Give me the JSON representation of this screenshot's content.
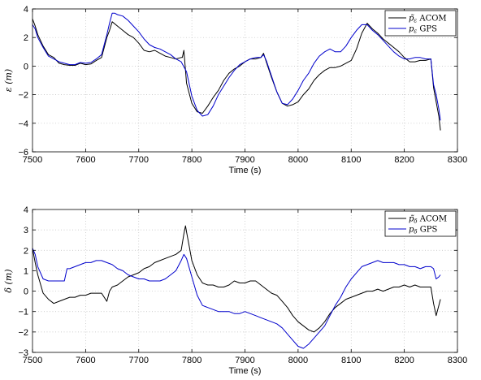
{
  "chart_data": [
    {
      "type": "line",
      "xlabel": "Time (s)",
      "ylabel": "ε (m)",
      "xlim": [
        7500,
        8300
      ],
      "ylim": [
        -6,
        4
      ],
      "xticks": [
        "7500",
        "7600",
        "7700",
        "7800",
        "7900",
        "8000",
        "8100",
        "8200",
        "8300"
      ],
      "yticks": [
        "−6",
        "−4",
        "−2",
        "0",
        "2",
        "4"
      ],
      "grid": true,
      "legend": "top-right",
      "series": [
        {
          "name": "p̃ε ACOM",
          "name_main": "p̃",
          "name_sub": "ε",
          "name_suffix": " ACOM",
          "color": "#000000",
          "x": [
            7500,
            7505,
            7510,
            7520,
            7530,
            7540,
            7550,
            7560,
            7570,
            7580,
            7590,
            7600,
            7610,
            7620,
            7630,
            7640,
            7645,
            7650,
            7660,
            7670,
            7680,
            7690,
            7700,
            7710,
            7720,
            7730,
            7740,
            7750,
            7760,
            7770,
            7780,
            7782,
            7785,
            7790,
            7800,
            7810,
            7820,
            7830,
            7840,
            7850,
            7860,
            7870,
            7880,
            7890,
            7900,
            7910,
            7920,
            7930,
            7935,
            7940,
            7950,
            7960,
            7970,
            7980,
            7990,
            8000,
            8010,
            8020,
            8030,
            8040,
            8050,
            8060,
            8070,
            8080,
            8090,
            8100,
            8110,
            8120,
            8130,
            8140,
            8150,
            8160,
            8170,
            8180,
            8190,
            8200,
            8210,
            8220,
            8230,
            8240,
            8250,
            8255,
            8260,
            8265,
            8268
          ],
          "values": [
            3.3,
            2.8,
            2.2,
            1.4,
            0.8,
            0.6,
            0.2,
            0.1,
            0.05,
            0.05,
            0.2,
            0.1,
            0.15,
            0.4,
            0.6,
            2.0,
            2.5,
            3.1,
            2.8,
            2.5,
            2.2,
            2.0,
            1.6,
            1.1,
            1.0,
            1.1,
            0.9,
            0.7,
            0.6,
            0.5,
            0.6,
            0.6,
            1.1,
            -1.2,
            -2.6,
            -3.2,
            -3.3,
            -2.8,
            -2.2,
            -1.7,
            -1.0,
            -0.5,
            -0.2,
            0.0,
            0.3,
            0.5,
            0.5,
            0.6,
            0.9,
            0.3,
            -0.8,
            -1.8,
            -2.6,
            -2.8,
            -2.7,
            -2.5,
            -2.0,
            -1.6,
            -1.0,
            -0.6,
            -0.3,
            -0.1,
            -0.1,
            0.0,
            0.2,
            0.4,
            1.2,
            2.3,
            3.0,
            2.6,
            2.3,
            1.9,
            1.6,
            1.3,
            1.0,
            0.6,
            0.3,
            0.3,
            0.4,
            0.4,
            0.5,
            -1.5,
            -2.5,
            -3.5,
            -4.5
          ]
        },
        {
          "name": "pε GPS",
          "name_main": "p",
          "name_sub": "ε",
          "name_suffix": " GPS",
          "color": "#0000cc",
          "x": [
            7500,
            7505,
            7510,
            7520,
            7530,
            7540,
            7550,
            7560,
            7570,
            7580,
            7590,
            7600,
            7610,
            7620,
            7630,
            7640,
            7645,
            7650,
            7655,
            7660,
            7670,
            7680,
            7690,
            7700,
            7710,
            7720,
            7730,
            7740,
            7750,
            7760,
            7770,
            7780,
            7790,
            7800,
            7810,
            7820,
            7830,
            7840,
            7850,
            7860,
            7870,
            7880,
            7890,
            7900,
            7910,
            7920,
            7930,
            7935,
            7940,
            7950,
            7960,
            7970,
            7980,
            7990,
            8000,
            8010,
            8020,
            8030,
            8040,
            8050,
            8060,
            8070,
            8080,
            8090,
            8100,
            8110,
            8120,
            8130,
            8140,
            8150,
            8160,
            8170,
            8180,
            8190,
            8200,
            8210,
            8220,
            8230,
            8240,
            8250,
            8255,
            8260,
            8265,
            8268
          ],
          "values": [
            2.9,
            2.6,
            2.0,
            1.3,
            0.7,
            0.5,
            0.3,
            0.2,
            0.1,
            0.1,
            0.25,
            0.2,
            0.25,
            0.5,
            0.8,
            2.2,
            3.0,
            3.7,
            3.7,
            3.6,
            3.5,
            3.2,
            2.8,
            2.4,
            1.9,
            1.5,
            1.3,
            1.2,
            1.0,
            0.8,
            0.5,
            0.3,
            -0.4,
            -2.1,
            -3.1,
            -3.5,
            -3.4,
            -2.8,
            -2.0,
            -1.4,
            -0.8,
            -0.3,
            0.1,
            0.3,
            0.5,
            0.6,
            0.6,
            0.8,
            0.4,
            -0.7,
            -1.8,
            -2.6,
            -2.7,
            -2.3,
            -1.7,
            -1.0,
            -0.5,
            0.2,
            0.7,
            1.0,
            1.2,
            1.0,
            1.0,
            1.4,
            2.0,
            2.5,
            2.9,
            2.9,
            2.5,
            2.2,
            1.8,
            1.4,
            1.0,
            0.7,
            0.5,
            0.5,
            0.6,
            0.6,
            0.5,
            0.5,
            -1.3,
            -2.0,
            -3.0,
            -3.8
          ]
        }
      ]
    },
    {
      "type": "line",
      "xlabel": "Time (s)",
      "ylabel": "δ (m)",
      "xlim": [
        7500,
        8300
      ],
      "ylim": [
        -3,
        4
      ],
      "xticks": [
        "7500",
        "7600",
        "7700",
        "7800",
        "7900",
        "8000",
        "8100",
        "8200",
        "8300"
      ],
      "yticks": [
        "−3",
        "−2",
        "−1",
        "0",
        "1",
        "2",
        "3",
        "4"
      ],
      "grid": true,
      "legend": "top-right",
      "series": [
        {
          "name": "p̃δ ACOM",
          "name_main": "p̃",
          "name_sub": "δ",
          "name_suffix": " ACOM",
          "color": "#000000",
          "x": [
            7500,
            7505,
            7510,
            7520,
            7530,
            7540,
            7550,
            7560,
            7570,
            7580,
            7590,
            7600,
            7610,
            7620,
            7630,
            7640,
            7645,
            7650,
            7660,
            7670,
            7680,
            7690,
            7700,
            7710,
            7720,
            7730,
            7740,
            7750,
            7760,
            7770,
            7780,
            7785,
            7788,
            7790,
            7795,
            7800,
            7810,
            7820,
            7830,
            7840,
            7850,
            7860,
            7870,
            7880,
            7890,
            7900,
            7910,
            7920,
            7930,
            7940,
            7950,
            7960,
            7970,
            7980,
            7990,
            8000,
            8010,
            8020,
            8030,
            8040,
            8050,
            8060,
            8070,
            8080,
            8090,
            8100,
            8110,
            8120,
            8130,
            8140,
            8150,
            8160,
            8170,
            8180,
            8190,
            8200,
            8210,
            8220,
            8230,
            8240,
            8250,
            8255,
            8260,
            8265,
            8268
          ],
          "values": [
            2.1,
            1.4,
            0.8,
            -0.1,
            -0.4,
            -0.6,
            -0.5,
            -0.4,
            -0.3,
            -0.3,
            -0.2,
            -0.2,
            -0.1,
            -0.1,
            -0.1,
            -0.5,
            0.0,
            0.2,
            0.3,
            0.5,
            0.7,
            0.8,
            0.9,
            1.1,
            1.2,
            1.4,
            1.5,
            1.6,
            1.7,
            1.8,
            2.0,
            2.8,
            3.2,
            2.9,
            2.2,
            1.5,
            0.8,
            0.4,
            0.3,
            0.3,
            0.2,
            0.2,
            0.3,
            0.5,
            0.4,
            0.4,
            0.5,
            0.5,
            0.3,
            0.1,
            -0.1,
            -0.2,
            -0.5,
            -0.8,
            -1.2,
            -1.5,
            -1.7,
            -1.9,
            -2.0,
            -1.8,
            -1.5,
            -1.1,
            -0.8,
            -0.6,
            -0.4,
            -0.3,
            -0.2,
            -0.1,
            0.0,
            0.0,
            0.1,
            0.0,
            0.1,
            0.2,
            0.2,
            0.3,
            0.2,
            0.3,
            0.2,
            0.2,
            0.2,
            -0.6,
            -1.2,
            -0.7,
            -0.4
          ]
        },
        {
          "name": "pδ GPS",
          "name_main": "p",
          "name_sub": "δ",
          "name_suffix": " GPS",
          "color": "#0000cc",
          "x": [
            7500,
            7505,
            7510,
            7520,
            7530,
            7540,
            7550,
            7560,
            7565,
            7570,
            7580,
            7590,
            7600,
            7610,
            7620,
            7630,
            7640,
            7650,
            7660,
            7670,
            7680,
            7690,
            7700,
            7710,
            7720,
            7730,
            7740,
            7750,
            7760,
            7770,
            7780,
            7785,
            7790,
            7800,
            7810,
            7820,
            7830,
            7840,
            7850,
            7860,
            7870,
            7880,
            7890,
            7900,
            7910,
            7920,
            7930,
            7940,
            7950,
            7960,
            7970,
            7980,
            7990,
            8000,
            8010,
            8020,
            8030,
            8040,
            8050,
            8060,
            8070,
            8080,
            8090,
            8100,
            8110,
            8120,
            8130,
            8140,
            8150,
            8160,
            8170,
            8180,
            8190,
            8200,
            8210,
            8220,
            8230,
            8240,
            8250,
            8255,
            8260,
            8265,
            8268
          ],
          "values": [
            2.1,
            1.8,
            1.2,
            0.6,
            0.5,
            0.5,
            0.5,
            0.5,
            1.1,
            1.1,
            1.2,
            1.3,
            1.4,
            1.4,
            1.5,
            1.5,
            1.4,
            1.3,
            1.1,
            1.0,
            0.8,
            0.7,
            0.6,
            0.6,
            0.5,
            0.5,
            0.5,
            0.6,
            0.8,
            1.0,
            1.5,
            1.8,
            1.6,
            0.7,
            -0.2,
            -0.7,
            -0.8,
            -0.9,
            -1.0,
            -1.0,
            -1.0,
            -1.1,
            -1.1,
            -1.0,
            -1.1,
            -1.2,
            -1.3,
            -1.4,
            -1.5,
            -1.6,
            -1.8,
            -2.1,
            -2.4,
            -2.7,
            -2.8,
            -2.6,
            -2.3,
            -2.0,
            -1.7,
            -1.2,
            -0.7,
            -0.3,
            0.2,
            0.6,
            0.9,
            1.2,
            1.3,
            1.4,
            1.5,
            1.4,
            1.4,
            1.4,
            1.3,
            1.3,
            1.2,
            1.2,
            1.1,
            1.2,
            1.2,
            1.1,
            0.6,
            0.7,
            0.8
          ]
        }
      ]
    }
  ]
}
